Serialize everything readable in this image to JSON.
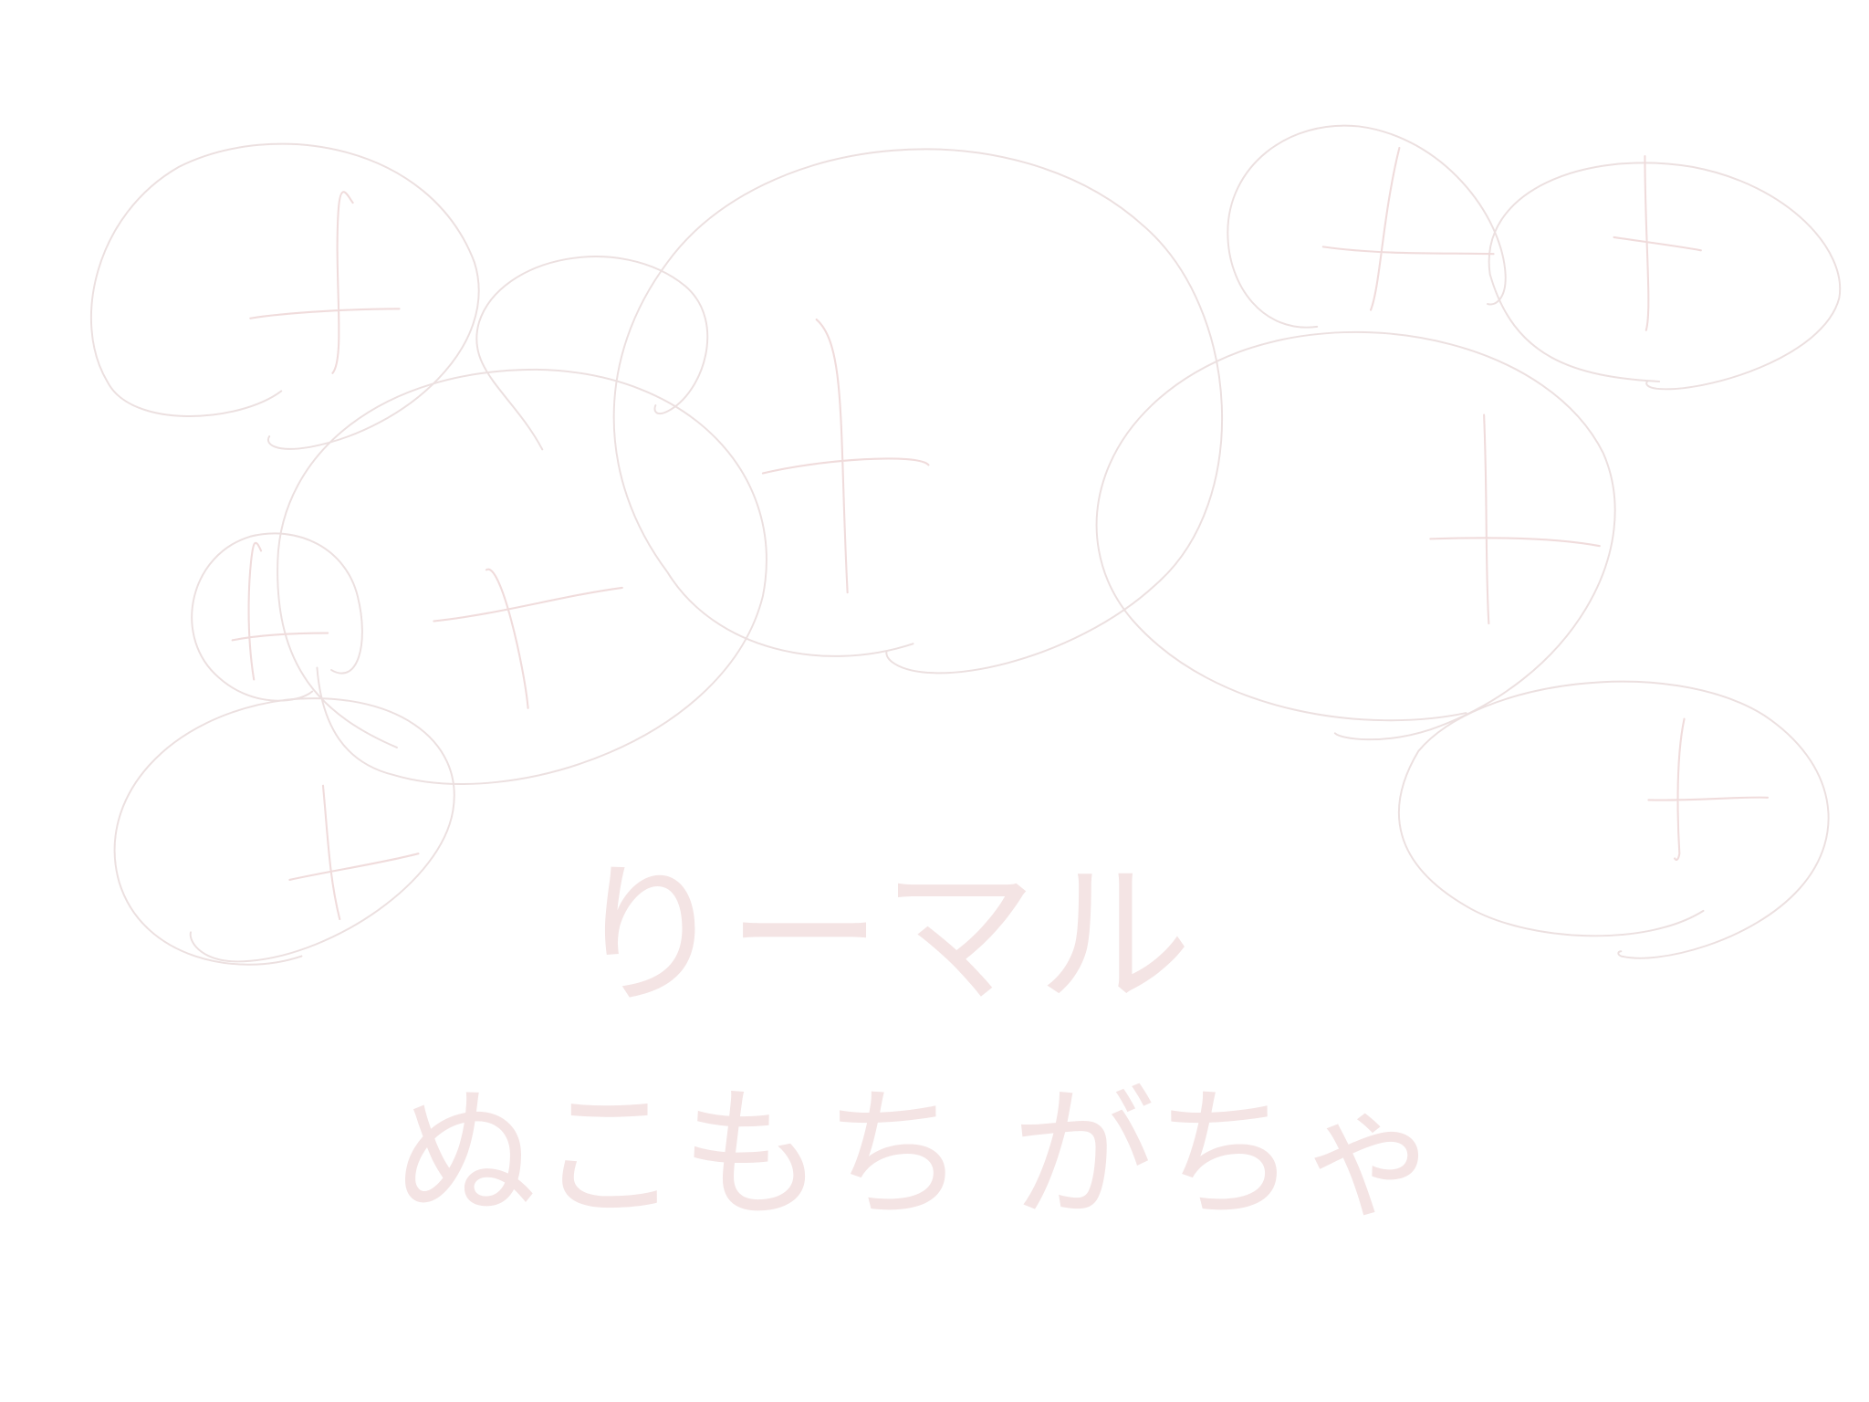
{
  "sketch": {
    "lines": [
      "りーマル",
      "ぬこもち がちゃ"
    ]
  }
}
